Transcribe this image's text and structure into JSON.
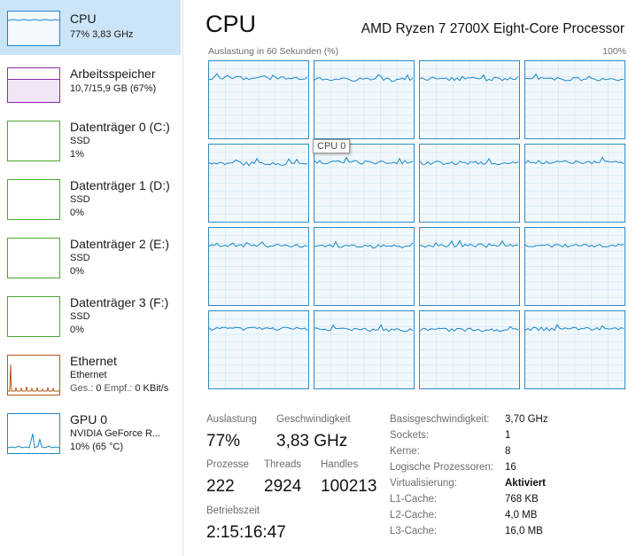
{
  "sidebar": {
    "items": [
      {
        "name": "CPU",
        "line1": "77% 3,83 GHz",
        "line2": "",
        "color": "#1a87c9",
        "selected": true
      },
      {
        "name": "Arbeitsspeicher",
        "line1": "10,7/15,9 GB (67%)",
        "line2": "",
        "color": "#8c2cb0",
        "selected": false
      },
      {
        "name": "Datenträger 0 (C:)",
        "line1": "SSD",
        "line2": "1%",
        "color": "#4da633",
        "selected": false
      },
      {
        "name": "Datenträger 1 (D:)",
        "line1": "SSD",
        "line2": "0%",
        "color": "#4da633",
        "selected": false
      },
      {
        "name": "Datenträger 2 (E:)",
        "line1": "SSD",
        "line2": "0%",
        "color": "#4da633",
        "selected": false
      },
      {
        "name": "Datenträger 3 (F:)",
        "line1": "SSD",
        "line2": "0%",
        "color": "#4da633",
        "selected": false
      },
      {
        "name": "Ethernet",
        "line1": "Ethernet",
        "line2_prefix_send": "Ges.: ",
        "line2_send": "0",
        "line2_prefix_recv": " Empf.: ",
        "line2_recv": "0 KBit/s",
        "color": "#b4581d",
        "selected": false
      },
      {
        "name": "GPU 0",
        "line1": "NVIDIA GeForce R...",
        "line2": "10% (65 °C)",
        "color": "#1a87c9",
        "selected": false
      }
    ]
  },
  "header": {
    "title": "CPU",
    "model": "AMD Ryzen 7 2700X Eight-Core Processor"
  },
  "graph": {
    "label": "Auslastung in 60 Sekunden (%)",
    "max_label": "100%",
    "tooltip": "CPU 0",
    "logical_processors": 16,
    "approx_utilization_percent": [
      78,
      76,
      77,
      77,
      75,
      77,
      76,
      77,
      77,
      76,
      77,
      77,
      77,
      76,
      76,
      77
    ]
  },
  "stats": {
    "utilization": {
      "label": "Auslastung",
      "value": "77%"
    },
    "speed": {
      "label": "Geschwindigkeit",
      "value": "3,83 GHz"
    },
    "processes": {
      "label": "Prozesse",
      "value": "222"
    },
    "threads": {
      "label": "Threads",
      "value": "2924"
    },
    "handles": {
      "label": "Handles",
      "value": "100213"
    },
    "uptime": {
      "label": "Betriebszeit",
      "value": "2:15:16:47"
    }
  },
  "info": [
    {
      "label": "Basisgeschwindigkeit:",
      "value": "3,70 GHz",
      "bold": false
    },
    {
      "label": "Sockets:",
      "value": "1",
      "bold": false
    },
    {
      "label": "Kerne:",
      "value": "8",
      "bold": false
    },
    {
      "label": "Logische Prozessoren:",
      "value": "16",
      "bold": false
    },
    {
      "label": "Virtualisierung:",
      "value": "Aktiviert",
      "bold": true
    },
    {
      "label": "L1-Cache:",
      "value": "768 KB",
      "bold": false
    },
    {
      "label": "L2-Cache:",
      "value": "4,0 MB",
      "bold": false
    },
    {
      "label": "L3-Cache:",
      "value": "16,0 MB",
      "bold": false
    }
  ]
}
